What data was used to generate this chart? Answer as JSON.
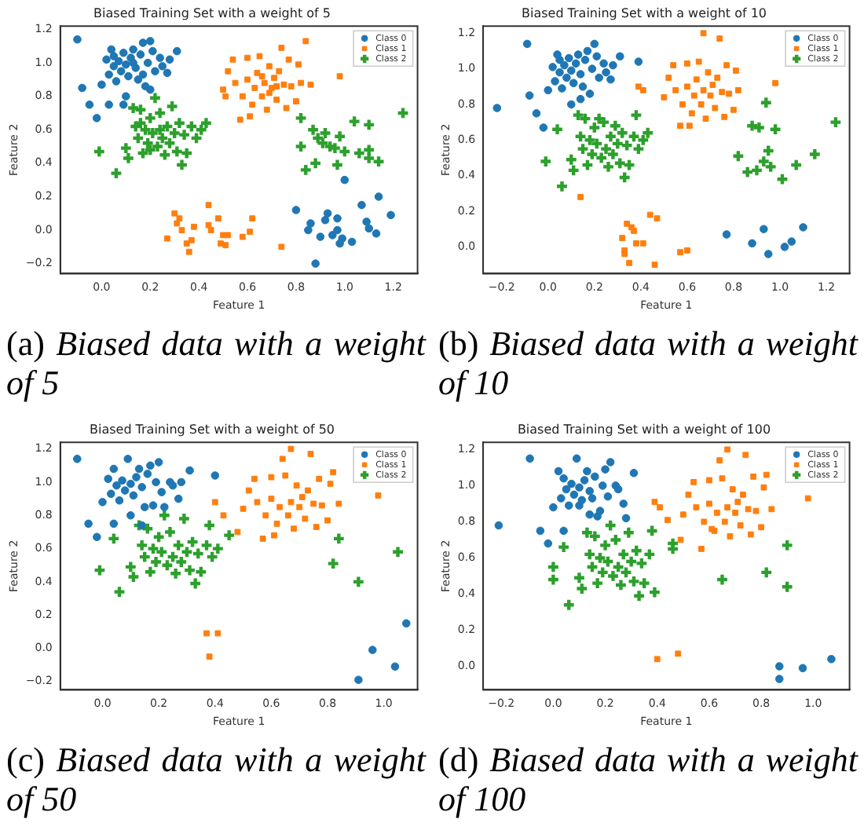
{
  "chart_data": [
    {
      "type": "scatter",
      "title": "Biased Training Set with a weight of 5",
      "xlabel": "Feature 1",
      "ylabel": "Feature 2",
      "xlim": [
        -0.17,
        1.3
      ],
      "ylim": [
        -0.26,
        1.22
      ],
      "xticks": [
        {
          "value": 0,
          "label": "0.0"
        },
        {
          "value": 0.2,
          "label": "0.2"
        },
        {
          "value": 0.4,
          "label": "0.4"
        },
        {
          "value": 0.6,
          "label": "0.6"
        },
        {
          "value": 0.8,
          "label": "0.8"
        },
        {
          "value": 1,
          "label": "1.0"
        },
        {
          "value": 1.2,
          "label": "1.2"
        }
      ],
      "yticks": [
        {
          "value": -0.2,
          "label": "−0.2"
        },
        {
          "value": 0,
          "label": "0.0"
        },
        {
          "value": 0.2,
          "label": "0.2"
        },
        {
          "value": 0.4,
          "label": "0.4"
        },
        {
          "value": 0.6,
          "label": "0.6"
        },
        {
          "value": 0.8,
          "label": "0.8"
        },
        {
          "value": 1,
          "label": "1.0"
        },
        {
          "value": 1.2,
          "label": "1.2"
        }
      ],
      "grid": false,
      "legend": "top right",
      "annotations": [
        "(a) Biased data with a weight of 5"
      ],
      "series": [
        {
          "name": "Class 0",
          "color": "#1f77b4",
          "marker": "circle",
          "x": [
            -0.1,
            -0.08,
            -0.05,
            -0.02,
            0.0,
            0.02,
            0.03,
            0.04,
            0.05,
            0.06,
            0.07,
            0.08,
            0.09,
            0.1,
            0.11,
            0.12,
            0.13,
            0.14,
            0.15,
            0.16,
            0.17,
            0.18,
            0.19,
            0.2,
            0.21,
            0.22,
            0.24,
            0.25,
            0.27,
            0.28,
            0.31,
            0.03,
            0.09,
            0.1,
            0.05,
            0.13,
            0.17,
            0.2,
            0.8,
            0.85,
            0.86,
            0.88,
            0.9,
            0.92,
            0.93,
            0.95,
            0.97,
            0.98,
            0.99,
            1.0,
            1.03,
            1.07,
            1.09,
            1.1,
            1.13,
            1.14,
            1.19,
            0.97
          ],
          "values": [
            1.14,
            0.85,
            0.75,
            0.67,
            0.87,
            1.02,
            0.93,
            1.08,
            0.98,
            0.89,
            1.01,
            0.95,
            1.06,
            0.99,
            0.92,
            1.03,
            1.08,
            0.97,
            0.9,
            1.05,
            1.12,
            0.86,
            1.0,
            1.13,
            1.07,
            0.95,
            1.03,
            0.98,
            0.94,
            1.02,
            1.07,
            0.75,
            0.75,
            0.8,
            1.04,
            1.0,
            0.93,
            0.84,
            0.12,
            0.0,
            0.04,
            -0.2,
            -0.04,
            0.06,
            0.1,
            -0.03,
            0.07,
            -0.08,
            -0.05,
            0.3,
            -0.07,
            0.15,
            0.05,
            0.01,
            -0.02,
            0.2,
            0.09,
            0.0
          ]
        },
        {
          "name": "Class 1",
          "color": "#ff7f0e",
          "marker": "square",
          "x": [
            0.5,
            0.51,
            0.52,
            0.54,
            0.55,
            0.57,
            0.58,
            0.6,
            0.6,
            0.61,
            0.62,
            0.63,
            0.64,
            0.65,
            0.66,
            0.67,
            0.68,
            0.69,
            0.7,
            0.71,
            0.72,
            0.73,
            0.74,
            0.75,
            0.76,
            0.77,
            0.78,
            0.8,
            0.81,
            0.82,
            0.84,
            0.86,
            0.98,
            0.66,
            0.69,
            0.72,
            0.27,
            0.3,
            0.31,
            0.32,
            0.33,
            0.35,
            0.36,
            0.37,
            0.38,
            0.44,
            0.44,
            0.45,
            0.49,
            0.5,
            0.51,
            0.52,
            0.58,
            0.61,
            0.62,
            0.74,
            0.48
          ],
          "values": [
            0.84,
            0.8,
            0.95,
            1.02,
            0.88,
            0.66,
            0.8,
            0.9,
            1.03,
            0.68,
            0.75,
            0.85,
            0.94,
            1.04,
            0.8,
            0.88,
            0.72,
            0.98,
            0.85,
            0.91,
            0.78,
            0.95,
            1.09,
            0.87,
            0.73,
            1.02,
            0.86,
            0.77,
            0.99,
            0.88,
            1.13,
            0.87,
            0.92,
            0.92,
            0.82,
            0.86,
            -0.05,
            0.1,
            0.04,
            0.07,
            0.0,
            -0.08,
            -0.13,
            -0.06,
            0.02,
            0.15,
            0.03,
            0.0,
            -0.08,
            -0.03,
            -0.09,
            -0.03,
            -0.04,
            -0.01,
            0.07,
            -0.1,
            0.07
          ]
        },
        {
          "name": "Class 2",
          "color": "#2ca02c",
          "marker": "cross",
          "x": [
            -0.01,
            0.06,
            0.1,
            0.11,
            0.13,
            0.14,
            0.15,
            0.16,
            0.17,
            0.18,
            0.19,
            0.2,
            0.21,
            0.22,
            0.23,
            0.24,
            0.25,
            0.26,
            0.27,
            0.28,
            0.29,
            0.3,
            0.31,
            0.32,
            0.33,
            0.34,
            0.35,
            0.37,
            0.39,
            0.41,
            0.43,
            0.2,
            0.24,
            0.16,
            0.82,
            0.82,
            0.84,
            0.87,
            0.88,
            0.89,
            0.91,
            0.92,
            0.94,
            0.96,
            0.97,
            0.98,
            1.0,
            1.04,
            1.06,
            1.1,
            1.1,
            1.1,
            1.14,
            1.24
          ],
          "values": [
            0.47,
            0.34,
            0.49,
            0.43,
            0.73,
            0.62,
            0.55,
            0.72,
            0.46,
            0.6,
            0.52,
            0.67,
            0.58,
            0.79,
            0.5,
            0.7,
            0.55,
            0.45,
            0.62,
            0.52,
            0.74,
            0.58,
            0.47,
            0.64,
            0.39,
            0.57,
            0.46,
            0.62,
            0.55,
            0.6,
            0.64,
            0.48,
            0.6,
            0.64,
            0.5,
            0.67,
            0.36,
            0.6,
            0.4,
            0.55,
            0.52,
            0.58,
            0.5,
            0.49,
            0.39,
            0.56,
            0.47,
            0.65,
            0.46,
            0.63,
            0.48,
            0.43,
            0.41,
            0.7
          ]
        }
      ]
    },
    {
      "type": "scatter",
      "title": "Biased Training Set with a weight of 10",
      "xlabel": "Feature 1",
      "ylabel": "Feature 2",
      "xlim": [
        -0.28,
        1.3
      ],
      "ylim": [
        -0.15,
        1.24
      ],
      "xticks": [
        {
          "value": -0.2,
          "label": "−0.2"
        },
        {
          "value": 0,
          "label": "0.0"
        },
        {
          "value": 0.2,
          "label": "0.2"
        },
        {
          "value": 0.4,
          "label": "0.4"
        },
        {
          "value": 0.6,
          "label": "0.6"
        },
        {
          "value": 0.8,
          "label": "0.8"
        },
        {
          "value": 1,
          "label": "1.0"
        },
        {
          "value": 1.2,
          "label": "1.2"
        }
      ],
      "yticks": [
        {
          "value": 0,
          "label": "0.0"
        },
        {
          "value": 0.2,
          "label": "0.2"
        },
        {
          "value": 0.4,
          "label": "0.4"
        },
        {
          "value": 0.6,
          "label": "0.6"
        },
        {
          "value": 0.8,
          "label": "0.8"
        },
        {
          "value": 1,
          "label": "1.0"
        },
        {
          "value": 1.2,
          "label": "1.2"
        }
      ],
      "grid": false,
      "legend": "top right",
      "annotations": [
        "(b) Biased data with a weight of 10"
      ],
      "series": [
        {
          "name": "Class 0",
          "color": "#1f77b4",
          "marker": "circle",
          "x": [
            -0.22,
            -0.09,
            -0.08,
            -0.05,
            -0.02,
            0.39,
            0.0,
            0.02,
            0.03,
            0.04,
            0.05,
            0.06,
            0.07,
            0.08,
            0.09,
            0.1,
            0.11,
            0.12,
            0.13,
            0.14,
            0.15,
            0.16,
            0.17,
            0.18,
            0.19,
            0.2,
            0.21,
            0.22,
            0.24,
            0.25,
            0.27,
            0.28,
            0.31,
            0.1,
            0.14,
            0.05,
            0.77,
            0.88,
            0.93,
            0.95,
            1.02,
            1.05,
            1.1
          ],
          "values": [
            0.78,
            1.14,
            0.85,
            0.75,
            0.67,
            1.04,
            0.88,
            1.01,
            0.93,
            1.08,
            0.98,
            0.89,
            1.02,
            0.95,
            1.06,
            0.99,
            0.92,
            1.03,
            1.08,
            0.97,
            0.9,
            1.05,
            1.1,
            0.86,
            1.0,
            1.14,
            1.07,
            0.95,
            1.03,
            0.98,
            0.94,
            1.02,
            1.07,
            0.8,
            0.83,
            1.05,
            0.07,
            0.02,
            0.1,
            -0.04,
            0.0,
            0.03,
            0.11
          ]
        },
        {
          "name": "Class 1",
          "color": "#ff7f0e",
          "marker": "square",
          "x": [
            0.39,
            0.41,
            0.14,
            0.5,
            0.52,
            0.54,
            0.55,
            0.57,
            0.58,
            0.6,
            0.6,
            0.61,
            0.62,
            0.63,
            0.64,
            0.65,
            0.66,
            0.67,
            0.67,
            0.68,
            0.69,
            0.7,
            0.71,
            0.72,
            0.73,
            0.74,
            0.75,
            0.76,
            0.77,
            0.78,
            0.8,
            0.81,
            0.82,
            0.98,
            0.32,
            0.33,
            0.33,
            0.34,
            0.35,
            0.36,
            0.37,
            0.38,
            0.41,
            0.44,
            0.46,
            0.47,
            0.57,
            0.6
          ],
          "values": [
            0.9,
            0.88,
            0.28,
            0.84,
            0.95,
            1.02,
            0.88,
            0.68,
            0.8,
            0.9,
            1.03,
            0.68,
            0.75,
            0.85,
            0.94,
            1.04,
            0.8,
            1.2,
            0.88,
            0.72,
            0.98,
            0.85,
            0.91,
            0.78,
            0.95,
            1.17,
            0.87,
            0.73,
            1.02,
            0.86,
            0.77,
            0.99,
            0.88,
            0.92,
            0.05,
            -0.04,
            -0.02,
            0.13,
            -0.09,
            0.11,
            0.09,
            0.02,
            0.02,
            0.18,
            -0.1,
            0.16,
            -0.03,
            -0.02
          ]
        },
        {
          "name": "Class 2",
          "color": "#2ca02c",
          "marker": "cross",
          "x": [
            -0.01,
            0.04,
            0.06,
            0.1,
            0.11,
            0.13,
            0.14,
            0.15,
            0.16,
            0.17,
            0.18,
            0.19,
            0.2,
            0.21,
            0.22,
            0.23,
            0.24,
            0.25,
            0.26,
            0.27,
            0.28,
            0.29,
            0.3,
            0.31,
            0.32,
            0.33,
            0.34,
            0.35,
            0.37,
            0.38,
            0.39,
            0.41,
            0.43,
            0.82,
            0.86,
            0.88,
            0.91,
            0.9,
            0.93,
            0.94,
            0.95,
            0.96,
            0.98,
            1.01,
            1.07,
            1.15,
            1.24
          ],
          "values": [
            0.48,
            0.66,
            0.34,
            0.49,
            0.43,
            0.74,
            0.62,
            0.55,
            0.72,
            0.46,
            0.6,
            0.52,
            0.67,
            0.58,
            0.72,
            0.5,
            0.7,
            0.55,
            0.45,
            0.62,
            0.52,
            0.68,
            0.58,
            0.47,
            0.64,
            0.39,
            0.57,
            0.46,
            0.62,
            0.74,
            0.55,
            0.6,
            0.64,
            0.51,
            0.42,
            0.68,
            0.67,
            0.43,
            0.48,
            0.81,
            0.54,
            0.45,
            0.66,
            0.38,
            0.46,
            0.52,
            0.7
          ]
        }
      ]
    },
    {
      "type": "scatter",
      "title": "Biased Training Set with a weight of 50",
      "xlabel": "Feature 1",
      "ylabel": "Feature 2",
      "xlim": [
        -0.15,
        1.12
      ],
      "ylim": [
        -0.25,
        1.24
      ],
      "xticks": [
        {
          "value": 0,
          "label": "0.0"
        },
        {
          "value": 0.2,
          "label": "0.2"
        },
        {
          "value": 0.4,
          "label": "0.4"
        },
        {
          "value": 0.6,
          "label": "0.6"
        },
        {
          "value": 0.8,
          "label": "0.8"
        },
        {
          "value": 1,
          "label": "1.0"
        }
      ],
      "yticks": [
        {
          "value": -0.2,
          "label": "−0.2"
        },
        {
          "value": 0,
          "label": "0.0"
        },
        {
          "value": 0.2,
          "label": "0.2"
        },
        {
          "value": 0.4,
          "label": "0.4"
        },
        {
          "value": 0.6,
          "label": "0.6"
        },
        {
          "value": 0.8,
          "label": "0.8"
        },
        {
          "value": 1,
          "label": "1.0"
        },
        {
          "value": 1.2,
          "label": "1.2"
        }
      ],
      "grid": false,
      "legend": "top right",
      "annotations": [
        "(c) Biased data with a weight of 50"
      ],
      "series": [
        {
          "name": "Class 0",
          "color": "#1f77b4",
          "marker": "circle",
          "x": [
            -0.09,
            -0.05,
            -0.02,
            0.4,
            0.0,
            0.02,
            0.03,
            0.04,
            0.05,
            0.06,
            0.07,
            0.08,
            0.09,
            0.1,
            0.11,
            0.12,
            0.13,
            0.14,
            0.15,
            0.16,
            0.17,
            0.18,
            0.19,
            0.2,
            0.21,
            0.22,
            0.24,
            0.25,
            0.27,
            0.28,
            0.31,
            0.1,
            0.14,
            0.04,
            0.91,
            0.96,
            1.04,
            1.08
          ],
          "values": [
            1.14,
            0.75,
            0.67,
            1.04,
            0.88,
            1.02,
            0.93,
            1.08,
            0.98,
            0.89,
            1.01,
            0.95,
            1.14,
            0.99,
            0.92,
            1.03,
            1.08,
            0.97,
            0.85,
            1.05,
            1.1,
            0.86,
            1.0,
            1.12,
            0.94,
            0.85,
            1.0,
            0.98,
            0.9,
            1.0,
            1.07,
            0.8,
            0.74,
            0.75,
            -0.19,
            -0.01,
            -0.11,
            0.15
          ]
        },
        {
          "name": "Class 1",
          "color": "#ff7f0e",
          "marker": "square",
          "x": [
            0.4,
            0.43,
            0.48,
            0.98,
            0.5,
            0.52,
            0.54,
            0.55,
            0.57,
            0.58,
            0.6,
            0.6,
            0.61,
            0.62,
            0.63,
            0.64,
            0.65,
            0.66,
            0.67,
            0.67,
            0.68,
            0.69,
            0.7,
            0.71,
            0.72,
            0.73,
            0.74,
            0.75,
            0.76,
            0.77,
            0.78,
            0.8,
            0.81,
            0.82,
            0.84,
            0.37,
            0.41,
            0.38
          ],
          "values": [
            0.88,
            0.8,
            0.7,
            0.92,
            0.84,
            0.95,
            1.02,
            0.88,
            0.66,
            0.8,
            0.9,
            1.03,
            0.68,
            0.75,
            0.85,
            1.14,
            1.04,
            0.8,
            1.2,
            0.88,
            0.72,
            0.98,
            0.85,
            0.91,
            0.78,
            0.95,
            1.17,
            0.87,
            0.73,
            1.02,
            0.86,
            0.77,
            0.99,
            1.06,
            0.87,
            0.09,
            0.09,
            -0.05
          ]
        },
        {
          "name": "Class 2",
          "color": "#2ca02c",
          "marker": "cross",
          "x": [
            -0.01,
            0.04,
            0.06,
            0.1,
            0.11,
            0.13,
            0.14,
            0.15,
            0.16,
            0.17,
            0.18,
            0.19,
            0.2,
            0.21,
            0.22,
            0.23,
            0.24,
            0.25,
            0.26,
            0.27,
            0.28,
            0.29,
            0.3,
            0.31,
            0.32,
            0.33,
            0.34,
            0.35,
            0.37,
            0.38,
            0.39,
            0.41,
            0.45,
            0.82,
            0.84,
            0.91,
            1.05
          ],
          "values": [
            0.47,
            0.66,
            0.34,
            0.49,
            0.43,
            0.74,
            0.62,
            0.55,
            0.72,
            0.46,
            0.6,
            0.52,
            0.67,
            0.58,
            0.8,
            0.5,
            0.7,
            0.55,
            0.45,
            0.62,
            0.52,
            0.78,
            0.58,
            0.47,
            0.64,
            0.39,
            0.57,
            0.46,
            0.62,
            0.74,
            0.55,
            0.6,
            0.68,
            0.51,
            0.66,
            0.4,
            0.58
          ]
        }
      ]
    },
    {
      "type": "scatter",
      "title": "Biased Training Set with a weight of 100",
      "xlabel": "Feature 1",
      "ylabel": "Feature 2",
      "xlim": [
        -0.27,
        1.14
      ],
      "ylim": [
        -0.13,
        1.24
      ],
      "xticks": [
        {
          "value": -0.2,
          "label": "−0.2"
        },
        {
          "value": 0,
          "label": "0.0"
        },
        {
          "value": 0.2,
          "label": "0.2"
        },
        {
          "value": 0.4,
          "label": "0.4"
        },
        {
          "value": 0.6,
          "label": "0.6"
        },
        {
          "value": 0.8,
          "label": "0.8"
        },
        {
          "value": 1,
          "label": "1.0"
        }
      ],
      "yticks": [
        {
          "value": 0,
          "label": "0.0"
        },
        {
          "value": 0.2,
          "label": "0.2"
        },
        {
          "value": 0.4,
          "label": "0.4"
        },
        {
          "value": 0.6,
          "label": "0.6"
        },
        {
          "value": 0.8,
          "label": "0.8"
        },
        {
          "value": 1,
          "label": "1.0"
        },
        {
          "value": 1.2,
          "label": "1.2"
        }
      ],
      "grid": false,
      "legend": "top right",
      "annotations": [
        "(d) Biased data with a weight of 100"
      ],
      "series": [
        {
          "name": "Class 0",
          "color": "#1f77b4",
          "marker": "circle",
          "x": [
            -0.21,
            -0.09,
            -0.05,
            -0.02,
            0.0,
            0.02,
            0.03,
            0.04,
            0.05,
            0.06,
            0.07,
            0.08,
            0.09,
            0.1,
            0.11,
            0.12,
            0.13,
            0.14,
            0.15,
            0.16,
            0.17,
            0.18,
            0.19,
            0.2,
            0.21,
            0.22,
            0.24,
            0.25,
            0.27,
            0.28,
            0.31,
            0.1,
            0.14,
            0.04,
            0.87,
            0.87,
            0.96,
            1.07
          ],
          "values": [
            0.78,
            1.15,
            0.75,
            0.68,
            0.88,
            1.08,
            0.93,
            0.75,
            0.98,
            0.89,
            1.01,
            0.95,
            1.15,
            0.99,
            0.92,
            1.03,
            1.08,
            0.97,
            0.93,
            1.05,
            0.83,
            0.86,
            1.0,
            1.09,
            0.94,
            1.13,
            1.0,
            0.98,
            0.9,
            0.82,
            1.07,
            0.89,
            0.84,
            1.04,
            0.0,
            -0.07,
            -0.01,
            0.04
          ]
        },
        {
          "name": "Class 1",
          "color": "#ff7f0e",
          "marker": "square",
          "x": [
            0.39,
            0.41,
            0.44,
            0.49,
            0.98,
            0.5,
            0.52,
            0.54,
            0.55,
            0.57,
            0.58,
            0.6,
            0.6,
            0.61,
            0.62,
            0.63,
            0.64,
            0.65,
            0.66,
            0.67,
            0.67,
            0.68,
            0.69,
            0.7,
            0.71,
            0.72,
            0.73,
            0.74,
            0.75,
            0.76,
            0.77,
            0.78,
            0.8,
            0.81,
            0.82,
            0.84,
            0.4,
            0.48
          ],
          "values": [
            0.91,
            0.88,
            0.81,
            0.7,
            0.93,
            0.84,
            0.95,
            1.02,
            0.88,
            0.65,
            0.8,
            0.9,
            1.03,
            0.76,
            0.75,
            0.85,
            1.14,
            1.04,
            0.8,
            1.2,
            0.88,
            0.72,
            0.98,
            0.85,
            0.91,
            0.78,
            0.95,
            1.17,
            0.87,
            0.73,
            1.05,
            0.86,
            0.77,
            0.99,
            1.06,
            0.87,
            0.04,
            0.07
          ]
        },
        {
          "name": "Class 2",
          "color": "#2ca02c",
          "marker": "cross",
          "x": [
            0.0,
            0.0,
            0.04,
            0.06,
            0.1,
            0.11,
            0.13,
            0.14,
            0.15,
            0.16,
            0.17,
            0.18,
            0.19,
            0.2,
            0.21,
            0.22,
            0.23,
            0.24,
            0.25,
            0.26,
            0.27,
            0.28,
            0.29,
            0.3,
            0.31,
            0.32,
            0.33,
            0.34,
            0.35,
            0.37,
            0.38,
            0.39,
            0.46,
            0.46,
            0.65,
            0.82,
            0.9,
            0.9
          ],
          "values": [
            0.48,
            0.55,
            0.66,
            0.34,
            0.49,
            0.43,
            0.74,
            0.62,
            0.55,
            0.72,
            0.46,
            0.6,
            0.52,
            0.67,
            0.58,
            0.78,
            0.5,
            0.7,
            0.55,
            0.45,
            0.62,
            0.52,
            0.74,
            0.58,
            0.47,
            0.64,
            0.39,
            0.57,
            0.46,
            0.62,
            0.75,
            0.41,
            0.68,
            0.65,
            0.48,
            0.52,
            0.67,
            0.44
          ]
        }
      ]
    }
  ]
}
